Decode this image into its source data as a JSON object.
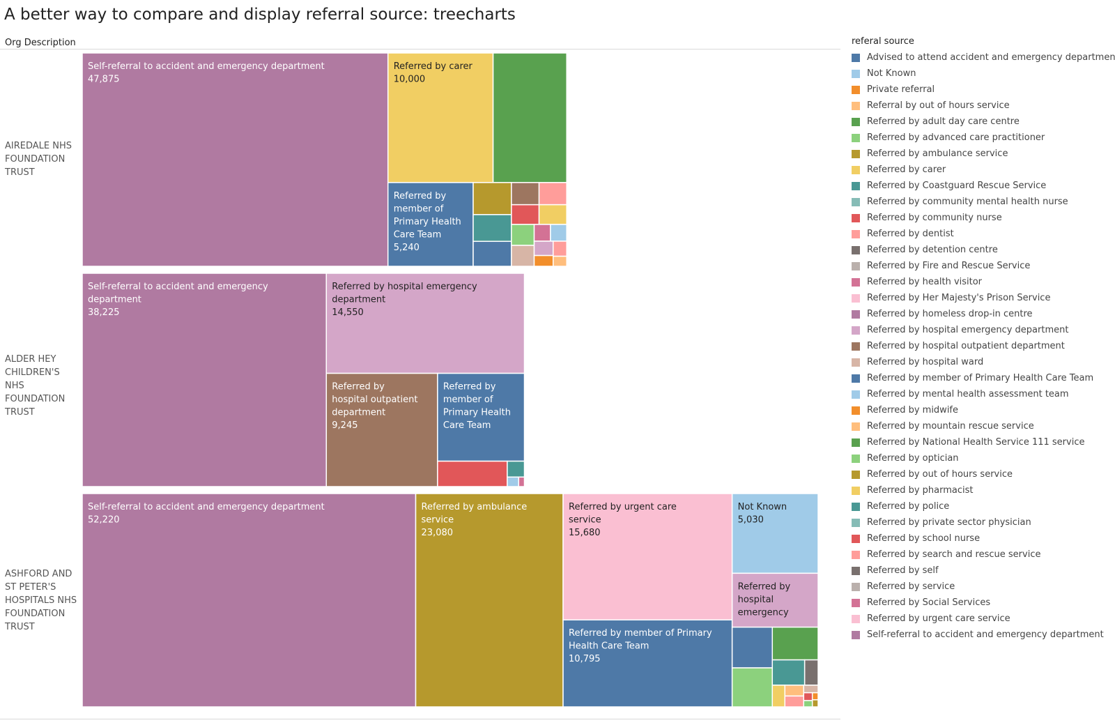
{
  "title": "A better way to compare and display referral source: treecharts",
  "row_header": "Org Description",
  "legend_title": "referal source",
  "legend": [
    {
      "name": "Advised to attend accident and emergency department",
      "color": "#4e79a7"
    },
    {
      "name": "Not Known",
      "color": "#a0cbe8"
    },
    {
      "name": "Private referral",
      "color": "#f28e2b"
    },
    {
      "name": "Referral by out of hours service",
      "color": "#ffbe7d"
    },
    {
      "name": "Referred by adult day care centre",
      "color": "#59a14f"
    },
    {
      "name": "Referred by advanced care practitioner",
      "color": "#8cd17d"
    },
    {
      "name": "Referred by ambulance service",
      "color": "#b6992d"
    },
    {
      "name": "Referred by carer",
      "color": "#f1ce63"
    },
    {
      "name": "Referred by Coastguard Rescue Service",
      "color": "#499894"
    },
    {
      "name": "Referred by community mental health nurse",
      "color": "#86bcb6"
    },
    {
      "name": "Referred by community nurse",
      "color": "#e15759"
    },
    {
      "name": "Referred by dentist",
      "color": "#ff9d9a"
    },
    {
      "name": "Referred by detention centre",
      "color": "#79706e"
    },
    {
      "name": "Referred by Fire and Rescue Service",
      "color": "#bab0ac"
    },
    {
      "name": "Referred by health visitor",
      "color": "#d37295"
    },
    {
      "name": "Referred by Her Majesty's Prison Service",
      "color": "#fabfd2"
    },
    {
      "name": "Referred by homeless drop-in centre",
      "color": "#b07aa1"
    },
    {
      "name": "Referred by hospital emergency department",
      "color": "#d4a6c8"
    },
    {
      "name": "Referred by hospital outpatient department",
      "color": "#9d7660"
    },
    {
      "name": "Referred by hospital ward",
      "color": "#d7b5a6"
    },
    {
      "name": "Referred by member of Primary Health Care Team",
      "color": "#4e79a7"
    },
    {
      "name": "Referred by mental health assessment team",
      "color": "#a0cbe8"
    },
    {
      "name": "Referred by midwife",
      "color": "#f28e2b"
    },
    {
      "name": "Referred by mountain rescue service",
      "color": "#ffbe7d"
    },
    {
      "name": "Referred by National Health Service 111 service",
      "color": "#59a14f"
    },
    {
      "name": "Referred by optician",
      "color": "#8cd17d"
    },
    {
      "name": "Referred by out of hours service",
      "color": "#b6992d"
    },
    {
      "name": "Referred by pharmacist",
      "color": "#f1ce63"
    },
    {
      "name": "Referred by police",
      "color": "#499894"
    },
    {
      "name": "Referred by private sector physician",
      "color": "#86bcb6"
    },
    {
      "name": "Referred by school nurse",
      "color": "#e15759"
    },
    {
      "name": "Referred by search and rescue service",
      "color": "#ff9d9a"
    },
    {
      "name": "Referred by self",
      "color": "#79706e"
    },
    {
      "name": "Referred by service",
      "color": "#bab0ac"
    },
    {
      "name": "Referred by Social Services",
      "color": "#d37295"
    },
    {
      "name": "Referred by urgent care service",
      "color": "#fabfd2"
    },
    {
      "name": "Self-referral to accident and emergency department",
      "color": "#b07aa1"
    }
  ],
  "chart_data": {
    "type": "treemap",
    "title": "A better way to compare and display referral source: treecharts",
    "rows": [
      {
        "org": "AIREDALE NHS FOUNDATION TRUST",
        "labeled": [
          {
            "category": "Self-referral to accident and emergency department",
            "value": 47875,
            "label": "Self-referral to accident and emergency department",
            "value_label": "47,875"
          },
          {
            "category": "Referred by carer",
            "value": 10000,
            "label": "Referred by carer",
            "value_label": "10,000"
          },
          {
            "category": "Referred by member of Primary Health Care Team",
            "value": 5240,
            "label": "Referred by member of Primary Health Care Team",
            "value_label": "5,240"
          }
        ],
        "unlabeled": [
          {
            "category": "Referred by adult day care centre",
            "value": 7000
          },
          {
            "category": "Referred by ambulance service",
            "value": 900
          },
          {
            "category": "Referred by Coastguard Rescue Service",
            "value": 750
          },
          {
            "category": "Advised to attend accident and emergency department",
            "value": 700
          },
          {
            "category": "Referred by hospital outpatient department",
            "value": 450
          },
          {
            "category": "Referred by dentist",
            "value": 450
          },
          {
            "category": "Referred by community nurse",
            "value": 400
          },
          {
            "category": "Referred by pharmacist",
            "value": 400
          },
          {
            "category": "Referred by advanced care practitioner",
            "value": 350
          },
          {
            "category": "Referred by hospital ward",
            "value": 350
          },
          {
            "category": "Referred by health visitor",
            "value": 200
          },
          {
            "category": "Referred by mental health assessment team",
            "value": 200
          },
          {
            "category": "Referred by hospital emergency department",
            "value": 200
          },
          {
            "category": "Private referral",
            "value": 150
          },
          {
            "category": "Referred by search and rescue service",
            "value": 150
          },
          {
            "category": "Referred by mountain rescue service",
            "value": 100
          }
        ]
      },
      {
        "org": "ALDER HEY CHILDREN'S NHS FOUNDATION TRUST",
        "labeled": [
          {
            "category": "Self-referral to accident and emergency department",
            "value": 38225,
            "label": "Self-referral to accident and emergency department",
            "value_label": "38,225"
          },
          {
            "category": "Referred by hospital emergency department",
            "value": 14550,
            "label": "Referred by hospital emergency department",
            "value_label": "14,550"
          },
          {
            "category": "Referred by hospital outpatient department",
            "value": 9245,
            "label": "Referred by hospital outpatient department",
            "value_label": "9,245"
          },
          {
            "category": "Referred by member of Primary Health Care Team",
            "value": 5600,
            "label": "Referred by member of Primary Health Care Team",
            "value_label": ""
          }
        ],
        "unlabeled": [
          {
            "category": "Referred by community nurse",
            "value": 1300
          },
          {
            "category": "Referred by Coastguard Rescue Service",
            "value": 200
          },
          {
            "category": "Referred by mental health assessment team",
            "value": 80
          },
          {
            "category": "Referred by health visitor",
            "value": 40
          }
        ]
      },
      {
        "org": "ASHFORD AND ST PETER'S HOSPITALS NHS FOUNDATION TRUST",
        "labeled": [
          {
            "category": "Self-referral to accident and emergency department",
            "value": 52220,
            "label": "Self-referral to accident and emergency department",
            "value_label": "52,220"
          },
          {
            "category": "Referred by ambulance service",
            "value": 23080,
            "label": "Referred by ambulance service",
            "value_label": "23,080"
          },
          {
            "category": "Referred by urgent care service",
            "value": 15680,
            "label": "Referred by urgent care service",
            "value_label": "15,680"
          },
          {
            "category": "Referred by member of Primary Health Care Team",
            "value": 10795,
            "label": "Referred by member of Primary Health Care Team",
            "value_label": "10,795"
          },
          {
            "category": "Not Known",
            "value": 5030,
            "label": "Not Known",
            "value_label": "5,030"
          },
          {
            "category": "Referred by hospital emergency department",
            "value": 3400,
            "label": "Referred by hospital emergency department",
            "value_label": ""
          }
        ],
        "unlabeled": [
          {
            "category": "Referred by National Health Service 111 service",
            "value": 1100
          },
          {
            "category": "Referred by advanced care practitioner",
            "value": 1150
          },
          {
            "category": "Advised to attend accident and emergency department",
            "value": 1200
          },
          {
            "category": "Referred by Coastguard Rescue Service",
            "value": 600
          },
          {
            "category": "Referred by detention centre",
            "value": 250
          },
          {
            "category": "Referred by pharmacist",
            "value": 200
          },
          {
            "category": "Referral by out of hours service",
            "value": 150
          },
          {
            "category": "Referred by search and rescue service",
            "value": 150
          },
          {
            "category": "Referred by hospital ward",
            "value": 80
          },
          {
            "category": "Referred by community nurse",
            "value": 50
          },
          {
            "category": "Referred by optician",
            "value": 40
          },
          {
            "category": "Private referral",
            "value": 30
          },
          {
            "category": "Referred by out of hours service",
            "value": 30
          }
        ]
      }
    ]
  }
}
